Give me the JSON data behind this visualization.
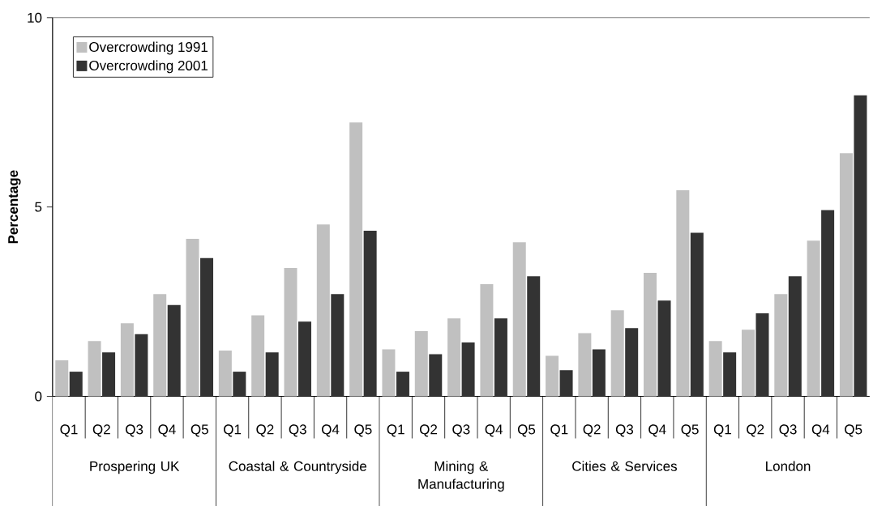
{
  "chart_data": {
    "type": "bar",
    "ylabel": "Percentage",
    "categories": [
      "Q1",
      "Q2",
      "Q3",
      "Q4",
      "Q5",
      "Q1",
      "Q2",
      "Q3",
      "Q4",
      "Q5",
      "Q1",
      "Q2",
      "Q3",
      "Q4",
      "Q5",
      "Q1",
      "Q2",
      "Q3",
      "Q4",
      "Q5",
      "Q1",
      "Q2",
      "Q3",
      "Q4",
      "Q5"
    ],
    "annotations": [
      "Prospering UK",
      "Coastal & Countryside",
      "Mining & Manufacturing",
      "Cities & Services",
      "London"
    ],
    "series": [
      {
        "name": "Overcrowding 1991",
        "color": "#c0c0c0",
        "values": [
          0.95,
          1.46,
          1.93,
          2.7,
          4.16,
          1.21,
          2.14,
          3.39,
          4.54,
          7.23,
          1.24,
          1.72,
          2.06,
          2.96,
          4.07,
          1.07,
          1.67,
          2.27,
          3.26,
          5.44,
          1.46,
          1.76,
          2.7,
          4.11,
          6.42
        ]
      },
      {
        "name": "Overcrowding 2001",
        "color": "#333333",
        "values": [
          0.65,
          1.16,
          1.64,
          2.41,
          3.65,
          0.65,
          1.16,
          1.97,
          2.7,
          4.37,
          0.65,
          1.11,
          1.42,
          2.06,
          3.17,
          0.69,
          1.24,
          1.8,
          2.53,
          4.32,
          1.16,
          2.19,
          3.17,
          4.92,
          7.95
        ]
      }
    ],
    "ylim": [
      0,
      10
    ],
    "yticks": [
      0,
      5,
      10
    ],
    "legend": "top left"
  }
}
